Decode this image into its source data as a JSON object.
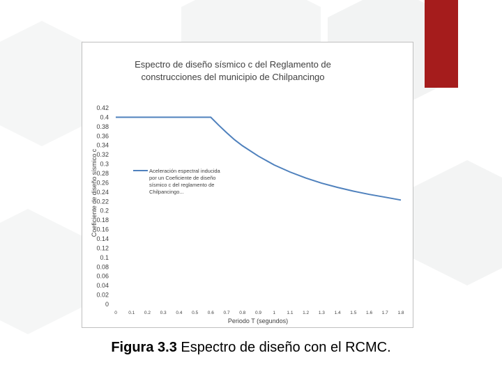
{
  "slide": {
    "accent_color": "#a51c1c",
    "caption_bold": "Figura 3.3",
    "caption_text": " Espectro de diseño con el RCMC."
  },
  "chart_data": {
    "type": "line",
    "title_line1": "Espectro de diseño sísmico c del Reglamento de",
    "title_line2": "construcciones del municipio de Chilpancingo",
    "xlabel": "Periodo T (segundos)",
    "ylabel": "Coeficiente de diseño sísmico c",
    "xlim": [
      0,
      1.8
    ],
    "ylim": [
      0,
      0.42
    ],
    "x_ticks": [
      "0",
      "0.1",
      "0.2",
      "0.3",
      "0.4",
      "0.5",
      "0.6",
      "0.7",
      "0.8",
      "0.9",
      "1",
      "1.1",
      "1.2",
      "1.3",
      "1.4",
      "1.5",
      "1.6",
      "1.7",
      "1.8"
    ],
    "y_ticks": [
      "0",
      "0.02",
      "0.04",
      "0.06",
      "0.08",
      "0.1",
      "0.12",
      "0.14",
      "0.16",
      "0.18",
      "0.2",
      "0.22",
      "0.24",
      "0.26",
      "0.28",
      "0.3",
      "0.32",
      "0.34",
      "0.36",
      "0.38",
      "0.4",
      "0.42"
    ],
    "grid": false,
    "legend_position": "center-left",
    "legend_lines": [
      "Aceleración espectral inducida",
      "por un Coeficiente de diseño",
      "sísmico c del reglamento de",
      "Chilpancingo..."
    ],
    "series": [
      {
        "color": "#4f81bd",
        "x": [
          0,
          0.6,
          0.65,
          0.7,
          0.75,
          0.8,
          0.9,
          1.0,
          1.1,
          1.2,
          1.3,
          1.4,
          1.5,
          1.6,
          1.7,
          1.8
        ],
        "y": [
          0.4,
          0.4,
          0.383,
          0.367,
          0.352,
          0.339,
          0.317,
          0.298,
          0.283,
          0.27,
          0.259,
          0.25,
          0.242,
          0.235,
          0.229,
          0.223
        ]
      }
    ]
  }
}
